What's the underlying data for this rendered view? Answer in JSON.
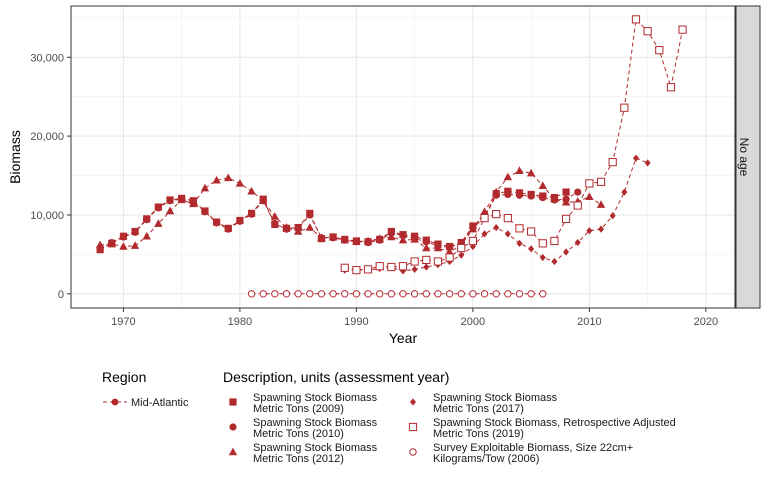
{
  "chart_data": {
    "type": "line",
    "xlabel": "Year",
    "ylabel": "Biomass",
    "xlim": [
      1965.5,
      2022.5
    ],
    "ylim": [
      -1800,
      36500
    ],
    "x_ticks": [
      1970,
      1980,
      1990,
      2000,
      2010,
      2020
    ],
    "x_tick_labels": [
      "1970",
      "1980",
      "1990",
      "2000",
      "2010",
      "2020"
    ],
    "y_ticks": [
      0,
      10000,
      20000,
      30000
    ],
    "y_tick_labels": [
      "0",
      "10,000",
      "20,000",
      "30,000"
    ],
    "grid": true,
    "facet_label": "No age",
    "color": "#b22a2e",
    "legend_region": {
      "title": "Region",
      "entries": [
        "Mid-Atlantic"
      ]
    },
    "legend_description": {
      "title": "Description, units (assessment year)",
      "entries": [
        {
          "shape": "square",
          "line1": "Spawning Stock Biomass",
          "line2": "Metric Tons (2009)"
        },
        {
          "shape": "circle",
          "line1": "Spawning Stock Biomass",
          "line2": "Metric Tons (2010)"
        },
        {
          "shape": "triangle",
          "line1": "Spawning Stock Biomass",
          "line2": "Metric Tons (2012)"
        },
        {
          "shape": "diamond",
          "line1": "Spawning Stock Biomass",
          "line2": "Metric Tons (2017)"
        },
        {
          "shape": "square-open",
          "line1": "Spawning Stock Biomass, Retrospective Adjusted",
          "line2": "Metric Tons (2019)"
        },
        {
          "shape": "circle-open",
          "line1": "Survey Exploitable Biomass, Size 22cm+",
          "line2": "Kilograms/Tow (2006)"
        }
      ]
    },
    "series": [
      {
        "shape": "square",
        "x": [
          1968,
          1969,
          1970,
          1971,
          1972,
          1973,
          1974,
          1975,
          1976,
          1977,
          1978,
          1979,
          1980,
          1981,
          1982,
          1983,
          1984,
          1985,
          1986,
          1987,
          1988,
          1989,
          1990,
          1991,
          1992,
          1993,
          1994,
          1995,
          1996,
          1997,
          1998,
          1999,
          2000,
          2001,
          2002,
          2003,
          2004,
          2005,
          2006,
          2007,
          2008
        ],
        "y": [
          5600,
          6400,
          7300,
          7900,
          9500,
          11000,
          11900,
          12100,
          11800,
          10500,
          9100,
          8300,
          9300,
          10200,
          12000,
          8800,
          8300,
          8400,
          10200,
          7000,
          7200,
          6900,
          6700,
          6600,
          6900,
          7900,
          7500,
          7300,
          6800,
          6300,
          6000,
          6500,
          8600,
          9800,
          12700,
          13000,
          12800,
          12600,
          12400,
          12200,
          12900
        ]
      },
      {
        "shape": "circle",
        "x": [
          1968,
          1969,
          1970,
          1971,
          1972,
          1973,
          1974,
          1975,
          1976,
          1977,
          1978,
          1979,
          1980,
          1981,
          1982,
          1983,
          1984,
          1985,
          1986,
          1987,
          1988,
          1989,
          1990,
          1991,
          1992,
          1993,
          1994,
          1995,
          1996,
          1997,
          1998,
          1999,
          2000,
          2001,
          2002,
          2003,
          2004,
          2005,
          2006,
          2007,
          2008,
          2009
        ],
        "y": [
          5800,
          6500,
          7200,
          7800,
          9400,
          10900,
          11800,
          12000,
          11600,
          10400,
          9000,
          8200,
          9200,
          10100,
          11800,
          8900,
          8200,
          8300,
          10000,
          7100,
          7100,
          6800,
          6600,
          6500,
          6800,
          7700,
          7400,
          7000,
          6600,
          6100,
          5900,
          6400,
          8400,
          9600,
          12500,
          12600,
          12500,
          12400,
          12200,
          11900,
          12000,
          12900
        ]
      },
      {
        "shape": "triangle",
        "x": [
          1968,
          1969,
          1970,
          1971,
          1972,
          1973,
          1974,
          1975,
          1976,
          1977,
          1978,
          1979,
          1980,
          1981,
          1982,
          1983,
          1984,
          1985,
          1986,
          1987,
          1988,
          1989,
          1990,
          1991,
          1992,
          1993,
          1994,
          1995,
          1996,
          1997,
          1998,
          1999,
          2000,
          2001,
          2002,
          2003,
          2004,
          2005,
          2006,
          2007,
          2008,
          2009,
          2010,
          2011
        ],
        "y": [
          6200,
          6300,
          6000,
          6100,
          7300,
          8900,
          10500,
          11900,
          11400,
          13400,
          14400,
          14700,
          14000,
          13000,
          11800,
          9800,
          8400,
          7900,
          8400,
          7100,
          7200,
          6800,
          6600,
          6700,
          7000,
          7200,
          6800,
          6900,
          5800,
          5800,
          5300,
          6200,
          8200,
          10400,
          12900,
          14800,
          15600,
          15300,
          13700,
          12000,
          11600,
          11700,
          12300,
          11300
        ]
      },
      {
        "shape": "diamond",
        "x": [
          1989,
          1990,
          1991,
          1992,
          1993,
          1994,
          1995,
          1996,
          1997,
          1998,
          1999,
          2000,
          2001,
          2002,
          2003,
          2004,
          2005,
          2006,
          2007,
          2008,
          2009,
          2010,
          2011,
          2012,
          2013,
          2014,
          2015
        ],
        "y": [
          3000,
          3100,
          3000,
          3200,
          3300,
          2900,
          3100,
          3400,
          3700,
          4100,
          4900,
          6000,
          7600,
          8400,
          7600,
          6400,
          5700,
          4600,
          4100,
          5300,
          6500,
          8000,
          8200,
          9900,
          12900,
          17200,
          16600
        ]
      },
      {
        "shape": "square-open",
        "x": [
          1989,
          1990,
          1991,
          1992,
          1993,
          1994,
          1995,
          1996,
          1997,
          1998,
          1999,
          2000,
          2001,
          2002,
          2003,
          2004,
          2005,
          2006,
          2007,
          2008,
          2009,
          2010,
          2011,
          2012,
          2013,
          2014,
          2015,
          2016,
          2017,
          2018
        ],
        "y": [
          3300,
          3000,
          3100,
          3500,
          3400,
          3500,
          4100,
          4300,
          4100,
          4600,
          5800,
          6700,
          9600,
          10100,
          9600,
          8300,
          7900,
          6400,
          6700,
          9500,
          11200,
          14000,
          14200,
          16700,
          23600,
          34800,
          33300,
          30900,
          26200,
          33500
        ]
      },
      {
        "shape": "circle-open",
        "x": [
          1981,
          1982,
          1983,
          1984,
          1985,
          1986,
          1987,
          1988,
          1989,
          1990,
          1991,
          1992,
          1993,
          1994,
          1995,
          1996,
          1997,
          1998,
          1999,
          2000,
          2001,
          2002,
          2003,
          2004,
          2005,
          2006
        ],
        "y": [
          0,
          0,
          0,
          0,
          0,
          0,
          0,
          0,
          0,
          0,
          0,
          0,
          0,
          0,
          0,
          0,
          0,
          0,
          0,
          0,
          0,
          0,
          0,
          0,
          0,
          0
        ]
      }
    ]
  }
}
